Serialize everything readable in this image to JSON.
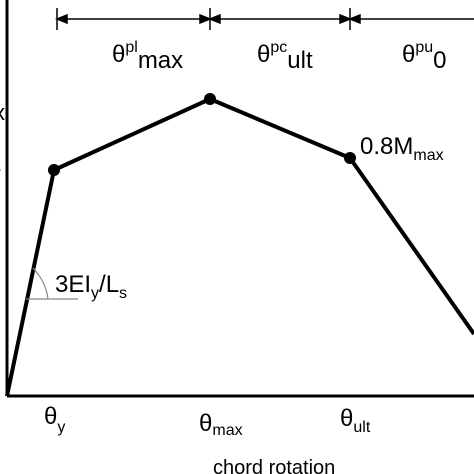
{
  "diagram": {
    "theta_symbol": "θ",
    "top_segments": [
      {
        "sup": "pl",
        "sub": "max"
      },
      {
        "sup": "pc",
        "sub": "ult"
      },
      {
        "sup": "pu",
        "sub": "0"
      }
    ],
    "stiffness_label": {
      "main": "3EI",
      "sub1": "y",
      "mid": "/L",
      "sub2": "s"
    },
    "point_label": {
      "main": "0.8M",
      "sub": "max"
    },
    "x_ticks": [
      {
        "sub": "y"
      },
      {
        "sub": "max"
      },
      {
        "sub": "ult"
      }
    ],
    "xlabel": "chord rotation",
    "left_edge_fragments": [
      "x",
      "-"
    ]
  }
}
